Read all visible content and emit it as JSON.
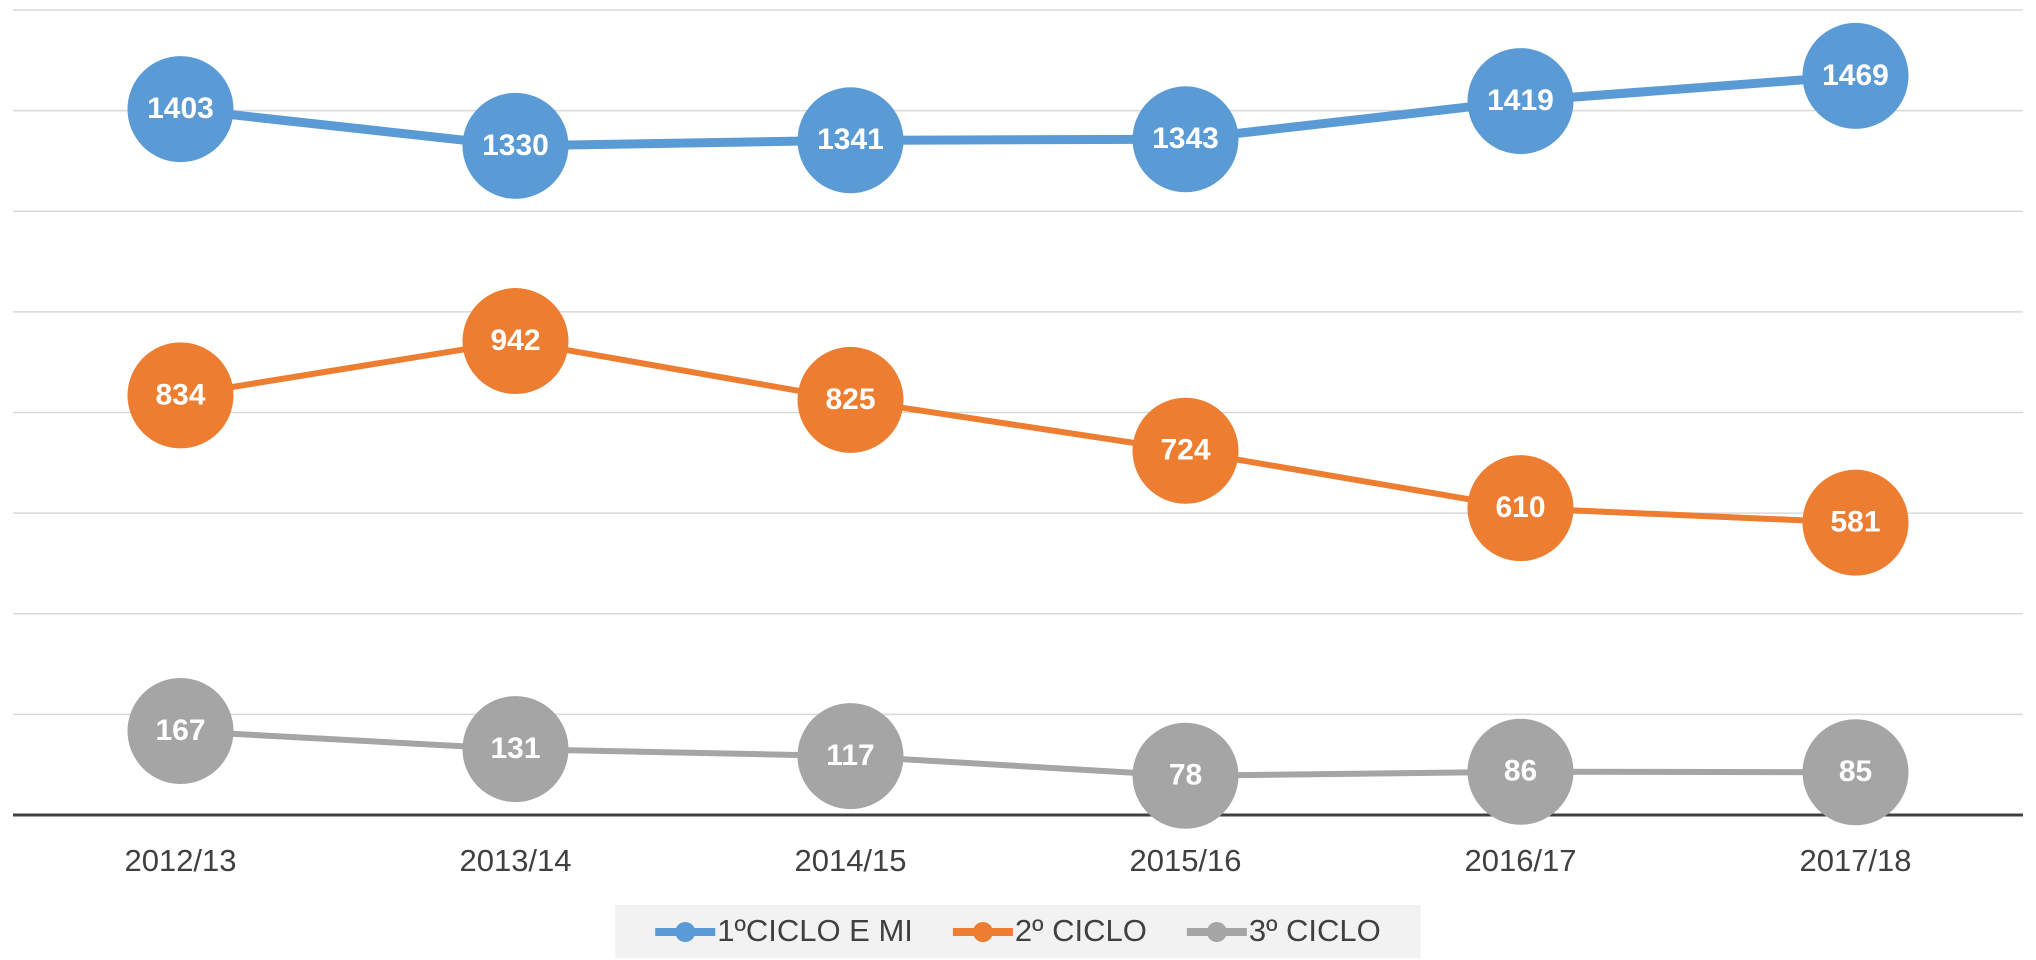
{
  "chart_data": {
    "type": "line",
    "categories": [
      "2012/13",
      "2013/14",
      "2014/15",
      "2015/16",
      "2016/17",
      "2017/18"
    ],
    "series": [
      {
        "name": "1ºCICLO E MI",
        "color": "#5b9bd5",
        "values": [
          1403,
          1330,
          1341,
          1343,
          1419,
          1469
        ]
      },
      {
        "name": "2º CICLO",
        "color": "#ed7d31",
        "values": [
          834,
          942,
          825,
          724,
          610,
          581
        ]
      },
      {
        "name": "3º CICLO",
        "color": "#a5a5a5",
        "values": [
          167,
          131,
          117,
          78,
          86,
          85
        ]
      }
    ],
    "ylim": [
      0,
      1600
    ],
    "yticks": [
      0,
      200,
      400,
      600,
      800,
      1000,
      1200,
      1400,
      1600
    ],
    "grid": true,
    "legend": "bottom"
  }
}
